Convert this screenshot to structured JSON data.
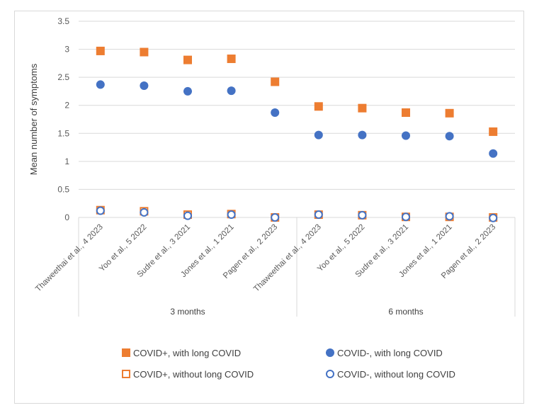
{
  "chart_data": {
    "type": "scatter",
    "ylabel": "Mean number of symptoms",
    "ylim": [
      0,
      3.5
    ],
    "yticks": [
      "0",
      "0.5",
      "1",
      "1.5",
      "2",
      "2.5",
      "3",
      "3.5"
    ],
    "groups": [
      {
        "label": "3 months",
        "categories": [
          "Thaweethai et al., 4 2023",
          "Yoo et al., 5 2022",
          "Sudre et al., 3 2021",
          "Jones et al., 1 2021",
          "Pagen et al., 2 2023"
        ]
      },
      {
        "label": "6 months",
        "categories": [
          "Thaweethai et al., 4 2023",
          "Yoo et al., 5 2022",
          "Sudre et al., 3 2021",
          "Jones et al., 1 2021",
          "Pagen et al., 2 2023"
        ]
      }
    ],
    "series": [
      {
        "name": "COVID+, with long COVID",
        "marker": "square",
        "filled": true,
        "color": "#ED7D31",
        "values": [
          2.97,
          2.95,
          2.81,
          2.83,
          2.42,
          1.98,
          1.95,
          1.87,
          1.86,
          1.53
        ]
      },
      {
        "name": "COVID-, with long COVID",
        "marker": "circle",
        "filled": true,
        "color": "#4472C4",
        "values": [
          2.37,
          2.35,
          2.25,
          2.26,
          1.87,
          1.47,
          1.47,
          1.46,
          1.45,
          1.14
        ]
      },
      {
        "name": "COVID+, without long COVID",
        "marker": "square",
        "filled": false,
        "color": "#ED7D31",
        "values": [
          0.13,
          0.11,
          0.05,
          0.06,
          0.0,
          0.05,
          0.04,
          0.01,
          0.01,
          0.0
        ]
      },
      {
        "name": "COVID-, without long COVID",
        "marker": "circle",
        "filled": false,
        "color": "#4472C4",
        "values": [
          0.12,
          0.09,
          0.03,
          0.05,
          0.0,
          0.05,
          0.04,
          0.01,
          0.02,
          -0.01
        ]
      }
    ],
    "grid": true,
    "legend_position": "bottom"
  }
}
